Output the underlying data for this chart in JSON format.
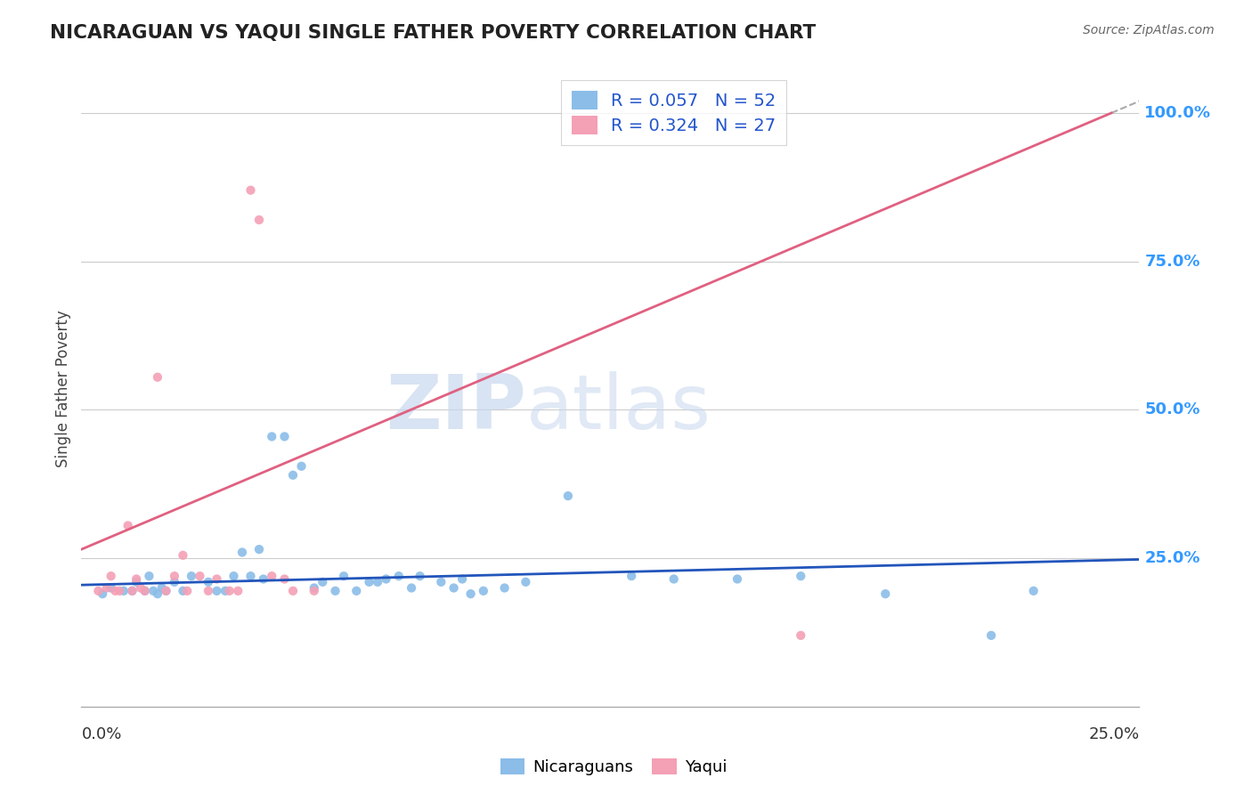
{
  "title": "NICARAGUAN VS YAQUI SINGLE FATHER POVERTY CORRELATION CHART",
  "source": "Source: ZipAtlas.com",
  "ylabel": "Single Father Poverty",
  "y_tick_labels": [
    "100.0%",
    "75.0%",
    "50.0%",
    "25.0%"
  ],
  "y_tick_values": [
    1.0,
    0.75,
    0.5,
    0.25
  ],
  "x_range": [
    0.0,
    0.25
  ],
  "y_range": [
    0.0,
    1.07
  ],
  "nicaraguan_R": 0.057,
  "nicaraguan_N": 52,
  "yaqui_R": 0.324,
  "yaqui_N": 27,
  "nicaraguan_color": "#8bbde8",
  "yaqui_color": "#f4a0b5",
  "nicaraguan_line_color": "#2255bb",
  "yaqui_line_color": "#e06080",
  "watermark_zip": "ZIP",
  "watermark_atlas": "atlas",
  "background_color": "#ffffff",
  "nic_line_y0": 0.205,
  "nic_line_y1": 0.248,
  "yaq_line_y0": 0.265,
  "yaq_line_y1": 1.02,
  "nicaraguan_points": [
    [
      0.005,
      0.19
    ],
    [
      0.007,
      0.2
    ],
    [
      0.01,
      0.195
    ],
    [
      0.012,
      0.195
    ],
    [
      0.013,
      0.21
    ],
    [
      0.015,
      0.195
    ],
    [
      0.016,
      0.22
    ],
    [
      0.017,
      0.195
    ],
    [
      0.018,
      0.19
    ],
    [
      0.019,
      0.2
    ],
    [
      0.02,
      0.195
    ],
    [
      0.022,
      0.21
    ],
    [
      0.024,
      0.195
    ],
    [
      0.026,
      0.22
    ],
    [
      0.03,
      0.21
    ],
    [
      0.032,
      0.195
    ],
    [
      0.034,
      0.195
    ],
    [
      0.036,
      0.22
    ],
    [
      0.038,
      0.26
    ],
    [
      0.04,
      0.22
    ],
    [
      0.042,
      0.265
    ],
    [
      0.043,
      0.215
    ],
    [
      0.045,
      0.455
    ],
    [
      0.048,
      0.455
    ],
    [
      0.05,
      0.39
    ],
    [
      0.052,
      0.405
    ],
    [
      0.055,
      0.2
    ],
    [
      0.057,
      0.21
    ],
    [
      0.06,
      0.195
    ],
    [
      0.062,
      0.22
    ],
    [
      0.065,
      0.195
    ],
    [
      0.068,
      0.21
    ],
    [
      0.07,
      0.21
    ],
    [
      0.072,
      0.215
    ],
    [
      0.075,
      0.22
    ],
    [
      0.078,
      0.2
    ],
    [
      0.08,
      0.22
    ],
    [
      0.085,
      0.21
    ],
    [
      0.088,
      0.2
    ],
    [
      0.09,
      0.215
    ],
    [
      0.092,
      0.19
    ],
    [
      0.095,
      0.195
    ],
    [
      0.1,
      0.2
    ],
    [
      0.105,
      0.21
    ],
    [
      0.115,
      0.355
    ],
    [
      0.13,
      0.22
    ],
    [
      0.14,
      0.215
    ],
    [
      0.155,
      0.215
    ],
    [
      0.17,
      0.22
    ],
    [
      0.19,
      0.19
    ],
    [
      0.215,
      0.12
    ],
    [
      0.225,
      0.195
    ]
  ],
  "yaqui_points": [
    [
      0.004,
      0.195
    ],
    [
      0.006,
      0.2
    ],
    [
      0.007,
      0.22
    ],
    [
      0.008,
      0.195
    ],
    [
      0.009,
      0.195
    ],
    [
      0.011,
      0.305
    ],
    [
      0.012,
      0.195
    ],
    [
      0.013,
      0.215
    ],
    [
      0.014,
      0.2
    ],
    [
      0.015,
      0.195
    ],
    [
      0.018,
      0.555
    ],
    [
      0.02,
      0.195
    ],
    [
      0.022,
      0.22
    ],
    [
      0.024,
      0.255
    ],
    [
      0.025,
      0.195
    ],
    [
      0.028,
      0.22
    ],
    [
      0.03,
      0.195
    ],
    [
      0.032,
      0.215
    ],
    [
      0.035,
      0.195
    ],
    [
      0.037,
      0.195
    ],
    [
      0.04,
      0.87
    ],
    [
      0.042,
      0.82
    ],
    [
      0.045,
      0.22
    ],
    [
      0.048,
      0.215
    ],
    [
      0.05,
      0.195
    ],
    [
      0.055,
      0.195
    ],
    [
      0.17,
      0.12
    ]
  ]
}
